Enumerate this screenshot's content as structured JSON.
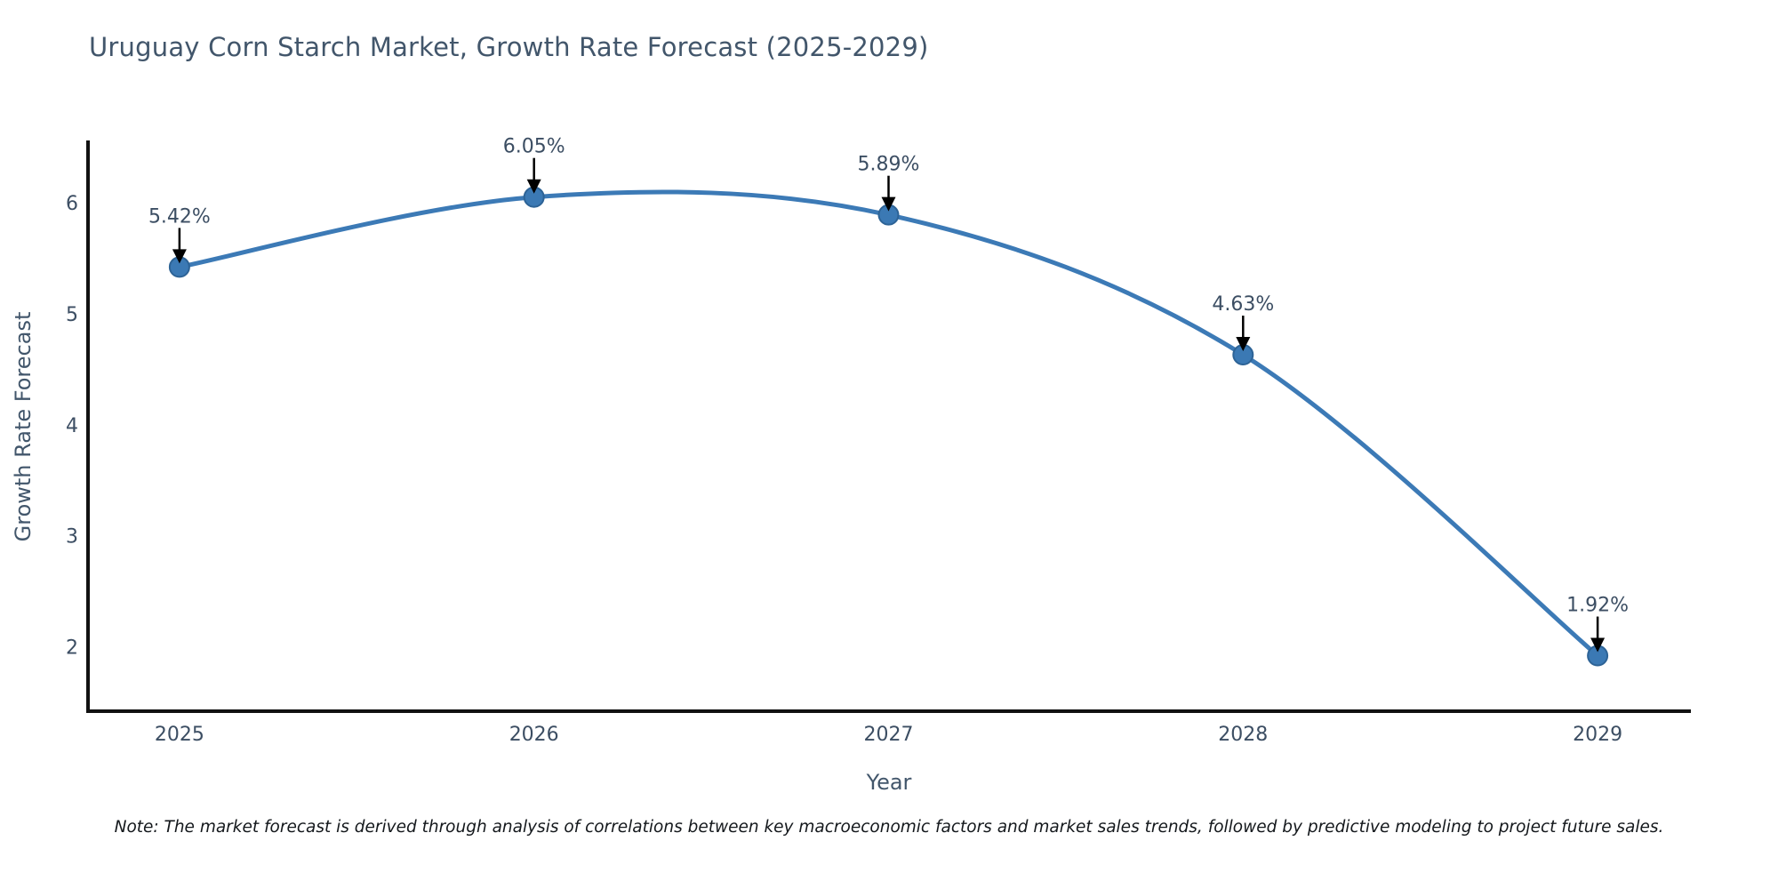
{
  "chart_data": {
    "type": "line",
    "title": "Uruguay Corn Starch Market, Growth Rate Forecast (2025-2029)",
    "xlabel": "Year",
    "ylabel": "Growth Rate Forecast",
    "x": [
      2025,
      2026,
      2027,
      2028,
      2029
    ],
    "values": [
      5.42,
      6.05,
      5.89,
      4.63,
      1.92
    ],
    "point_labels": [
      "5.42%",
      "6.05%",
      "5.89%",
      "4.63%",
      "1.92%"
    ],
    "yticks": [
      2,
      3,
      4,
      5,
      6
    ],
    "xlim": [
      2024.742,
      2029.258
    ],
    "ylim": [
      1.42,
      6.56
    ],
    "grid": false,
    "legend_position": "none",
    "line_color": "#3c7ab6",
    "marker_color": "#3b79b4",
    "marker_edge_color": "#2d6396",
    "arrow_color": "#000000",
    "axis_color": "#111111",
    "title_color": "#42566b",
    "tick_color": "#3c4e63"
  },
  "note": "Note: The market forecast is derived through analysis of correlations between key macroeconomic factors and market sales trends, followed by predictive modeling to project future sales."
}
